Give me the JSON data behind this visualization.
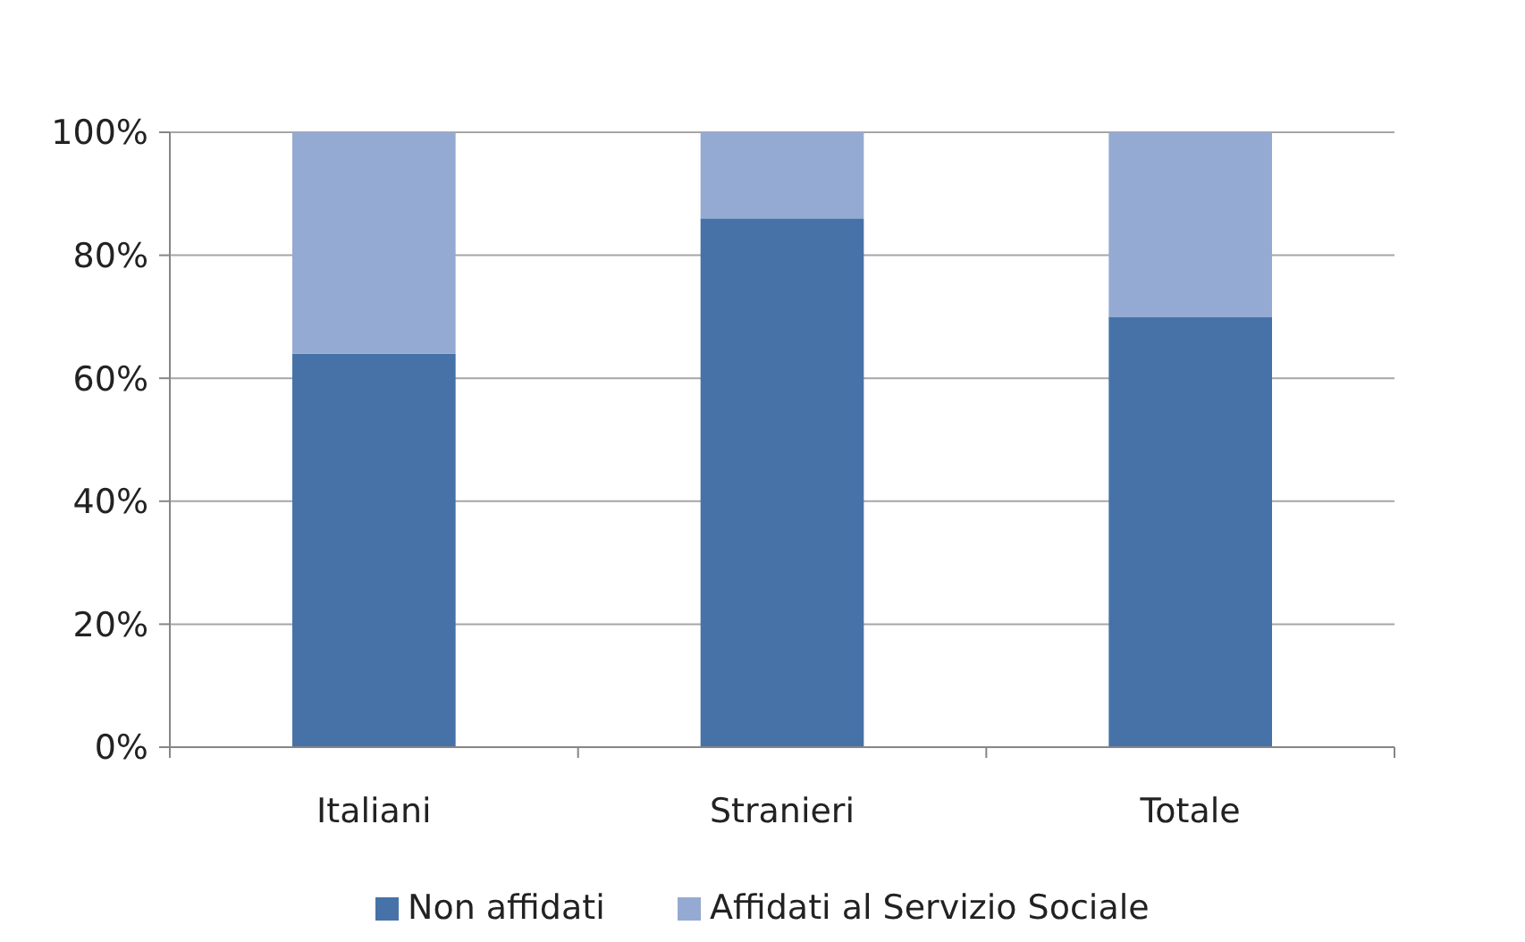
{
  "chart_data": {
    "type": "bar",
    "stacked": true,
    "categories": [
      "Italiani",
      "Stranieri",
      "Totale"
    ],
    "series": [
      {
        "name": "Non affidati",
        "color": "#4672a8",
        "values": [
          64,
          86,
          70
        ]
      },
      {
        "name": "Affidati al Servizio Sociale",
        "color": "#95aad2",
        "values": [
          36,
          14,
          30
        ]
      }
    ],
    "ylim": [
      0,
      100
    ],
    "yticks": [
      {
        "value": 0,
        "label": "0%"
      },
      {
        "value": 20,
        "label": "20%"
      },
      {
        "value": 40,
        "label": "40%"
      },
      {
        "value": 60,
        "label": "60%"
      },
      {
        "value": 80,
        "label": "80%"
      },
      {
        "value": 100,
        "label": "100%"
      }
    ],
    "grid": "y",
    "legend": "bottom"
  }
}
